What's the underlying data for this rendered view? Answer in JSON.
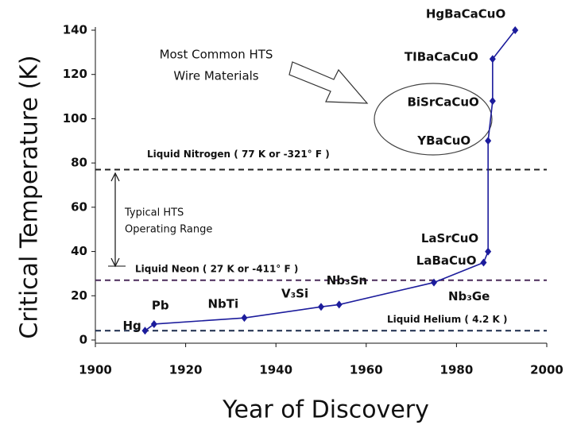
{
  "chart_data": {
    "type": "line",
    "x_label": "Year of Discovery",
    "y_label": "Critical Temperature (K)",
    "x": [
      1911,
      1913,
      1933,
      1950,
      1954,
      1975,
      1986,
      1987,
      1987,
      1988,
      1988,
      1993
    ],
    "values": [
      4.2,
      7.2,
      10,
      15,
      16,
      26,
      35,
      40,
      90,
      108,
      127,
      140
    ],
    "point_labels": [
      "Hg",
      "Pb",
      "NbTi",
      "V₃Si",
      "Nb₃Sn",
      "Nb₃Ge",
      "LaBaCuO",
      "LaSrCuO",
      "YBaCuO",
      "BiSrCaCuO",
      "TIBaCaCuO",
      "HgBaCaCuO"
    ],
    "color": "#1c1c9c",
    "xlim": [
      1900,
      2000
    ],
    "xticks": [
      1900,
      1920,
      1940,
      1960,
      1980,
      2000
    ],
    "ylim": [
      0,
      140
    ],
    "yticks": [
      0,
      20,
      40,
      60,
      80,
      100,
      120,
      140
    ],
    "reference_lines": [
      {
        "label": "Liquid Nitrogen ( 77 K or -321° F )",
        "value": 77,
        "color": "#222222"
      },
      {
        "label": "Liquid Neon ( 27 K or -411° F )",
        "value": 27,
        "color": "#4a2a5a"
      },
      {
        "label": "Liquid Helium ( 4.2 K )",
        "value": 4.2,
        "color": "#1a2a4a"
      }
    ],
    "annotations": [
      "Most Common HTS",
      "Wire Materials",
      "Typical HTS",
      "Operating Range"
    ]
  }
}
